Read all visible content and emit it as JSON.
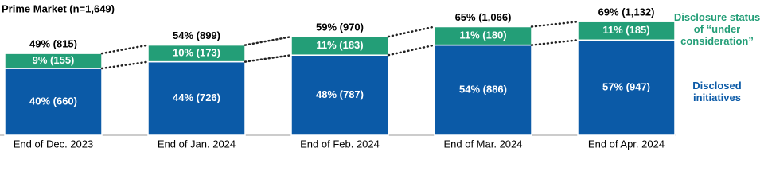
{
  "chart_data": {
    "type": "stacked_bar",
    "title": "Prime Market (n=1,649)",
    "categories": [
      "End of Dec. 2023",
      "End of Jan. 2024",
      "End of Feb. 2024",
      "End of Mar. 2024",
      "End of Apr. 2024"
    ],
    "series": [
      {
        "name": "Disclosed initiatives",
        "color": "#0b5aa7",
        "values": [
          40,
          44,
          48,
          54,
          57
        ],
        "value_labels": [
          "40% (660)",
          "44% (726)",
          "48% (787)",
          "54% (886)",
          "57% (947)"
        ]
      },
      {
        "name": "Disclosure status of “under consideration”",
        "color": "#239e77",
        "values": [
          9,
          10,
          11,
          11,
          11
        ],
        "value_labels": [
          "9% (155)",
          "10% (173)",
          "11% (183)",
          "11% (180)",
          "11% (185)"
        ]
      }
    ],
    "totals": {
      "values": [
        49,
        54,
        59,
        65,
        69
      ],
      "value_labels": [
        "49% (815)",
        "54% (899)",
        "59% (970)",
        "65% (1,066)",
        "69% (1,132)"
      ]
    }
  }
}
